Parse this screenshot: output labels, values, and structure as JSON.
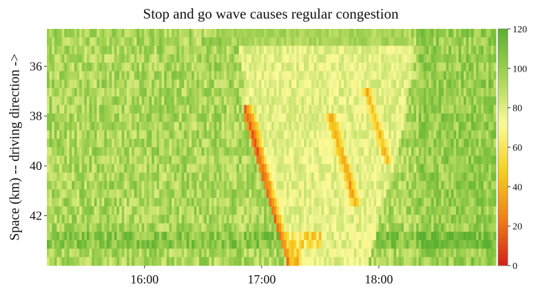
{
  "chart_data": {
    "type": "heatmap",
    "title": "Stop and go wave causes regular congestion",
    "xlabel": "",
    "ylabel": "Space (km) -- driving direction ->",
    "x_axis": {
      "range": [
        "15:10",
        "19:00"
      ],
      "ticks": [
        {
          "label": "16:00",
          "value_min": 960
        },
        {
          "label": "17:00",
          "value_min": 1020
        },
        {
          "label": "18:00",
          "value_min": 1080
        }
      ]
    },
    "y_axis": {
      "range_km": [
        34.5,
        44.0
      ],
      "direction": "increasing downward",
      "ticks": [
        {
          "label": "36",
          "value": 36
        },
        {
          "label": "38",
          "value": 38
        },
        {
          "label": "40",
          "value": 40
        },
        {
          "label": "42",
          "value": 42
        }
      ]
    },
    "colorbar": {
      "range": [
        0,
        120
      ],
      "ticks": [
        "0",
        "20",
        "40",
        "60",
        "80",
        "100",
        "120"
      ],
      "colors": [
        "#d62018",
        "#f08018",
        "#f5d020",
        "#fbfa9a",
        "#a6d354",
        "#5cb030"
      ]
    },
    "congestion_region": {
      "description_free": true,
      "start_time_min": 1005,
      "end_time_min": 1100,
      "waves": [
        {
          "start_time_min": 1011,
          "start_km": 37.4,
          "end_time_min": 1033,
          "end_km": 44.0,
          "min_speed": 8
        },
        {
          "start_time_min": 1055,
          "start_km": 37.9,
          "end_time_min": 1068,
          "end_km": 41.5,
          "min_speed": 25
        },
        {
          "start_time_min": 1074,
          "start_km": 37.0,
          "end_time_min": 1085,
          "end_km": 40.0,
          "min_speed": 30
        }
      ]
    },
    "grid": false,
    "legend": "colorbar-right"
  }
}
